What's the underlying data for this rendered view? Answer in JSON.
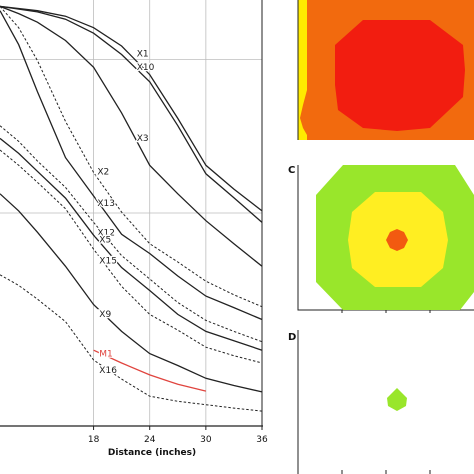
{
  "chart_data": [
    {
      "type": "line",
      "title": "",
      "xlabel": "Distance (inches)",
      "ylabel": "",
      "x_ticks": [
        "18",
        "24",
        "30",
        "36"
      ],
      "xlim": [
        8,
        36
      ],
      "grid": true,
      "series": [
        {
          "name": "X1",
          "color": "#222222",
          "style": "solid",
          "x": [
            8,
            12,
            15,
            18,
            21,
            24,
            27,
            30,
            33,
            36
          ],
          "y": [
            0.985,
            0.975,
            0.962,
            0.935,
            0.892,
            0.825,
            0.722,
            0.612,
            0.556,
            0.505
          ]
        },
        {
          "name": "X10",
          "color": "#222222",
          "style": "solid",
          "x": [
            8,
            12,
            15,
            18,
            21,
            24,
            27,
            30,
            33,
            36
          ],
          "y": [
            0.985,
            0.972,
            0.955,
            0.922,
            0.872,
            0.808,
            0.705,
            0.592,
            0.536,
            0.478
          ]
        },
        {
          "name": "X3",
          "color": "#222222",
          "style": "solid",
          "x": [
            8,
            10,
            12,
            15,
            18,
            21,
            24,
            27,
            30,
            33,
            36
          ],
          "y": [
            0.985,
            0.968,
            0.948,
            0.905,
            0.842,
            0.735,
            0.612,
            0.545,
            0.482,
            0.428,
            0.375
          ]
        },
        {
          "name": "X2",
          "color": "#222222",
          "style": "dashed",
          "x": [
            8,
            10,
            12,
            15,
            18,
            21,
            24,
            27,
            30,
            33,
            36
          ],
          "y": [
            0.985,
            0.935,
            0.858,
            0.715,
            0.595,
            0.502,
            0.428,
            0.385,
            0.34,
            0.308,
            0.28
          ]
        },
        {
          "name": "X13",
          "color": "#222222",
          "style": "solid",
          "x": [
            8,
            10,
            12,
            15,
            18,
            21,
            24,
            27,
            30,
            33,
            36
          ],
          "y": [
            0.975,
            0.895,
            0.785,
            0.63,
            0.54,
            0.45,
            0.405,
            0.352,
            0.305,
            0.278,
            0.25
          ]
        },
        {
          "name": "X12",
          "color": "#222222",
          "style": "dashed",
          "x": [
            8,
            10,
            12,
            15,
            18,
            21,
            24,
            27,
            30,
            33,
            36
          ],
          "y": [
            0.705,
            0.668,
            0.622,
            0.56,
            0.478,
            0.4,
            0.345,
            0.29,
            0.248,
            0.222,
            0.198
          ]
        },
        {
          "name": "X5",
          "color": "#222222",
          "style": "solid",
          "x": [
            8,
            10,
            12,
            15,
            18,
            21,
            24,
            27,
            30,
            33,
            36
          ],
          "y": [
            0.675,
            0.64,
            0.598,
            0.535,
            0.448,
            0.372,
            0.318,
            0.262,
            0.222,
            0.2,
            0.178
          ]
        },
        {
          "name": "X15",
          "color": "#222222",
          "style": "dashed",
          "x": [
            8,
            10,
            12,
            15,
            18,
            21,
            24,
            27,
            30,
            33,
            36
          ],
          "y": [
            0.648,
            0.612,
            0.572,
            0.51,
            0.415,
            0.328,
            0.262,
            0.225,
            0.185,
            0.165,
            0.148
          ]
        },
        {
          "name": "M1",
          "color": "#e0443e",
          "style": "solid",
          "x": [
            18,
            21,
            24,
            27,
            30
          ],
          "y": [
            0.178,
            0.148,
            0.12,
            0.098,
            0.082
          ]
        },
        {
          "name": "X9",
          "color": "#222222",
          "style": "solid",
          "x": [
            8,
            10,
            12,
            15,
            18,
            21,
            24,
            27,
            30,
            33,
            36
          ],
          "y": [
            0.545,
            0.505,
            0.455,
            0.375,
            0.285,
            0.222,
            0.17,
            0.142,
            0.112,
            0.095,
            0.08
          ]
        },
        {
          "name": "X16",
          "color": "#222222",
          "style": "dashed",
          "x": [
            8,
            10,
            12,
            15,
            18,
            21,
            24,
            27,
            30,
            33,
            36
          ],
          "y": [
            0.355,
            0.33,
            0.298,
            0.245,
            0.155,
            0.11,
            0.07,
            0.058,
            0.05,
            0.042,
            0.035
          ]
        }
      ]
    },
    {
      "type": "heatmap",
      "panel_label": "",
      "colors": {
        "yellow": "#ffea00",
        "orange": "#f26a0e",
        "red": "#f21d10"
      }
    },
    {
      "type": "heatmap",
      "panel_label": "C",
      "colors": {
        "green": "#99e62b",
        "yellow": "#ffee22",
        "orange": "#f25a10"
      }
    },
    {
      "type": "heatmap",
      "panel_label": "D",
      "colors": {
        "green": "#99e62b"
      }
    }
  ]
}
